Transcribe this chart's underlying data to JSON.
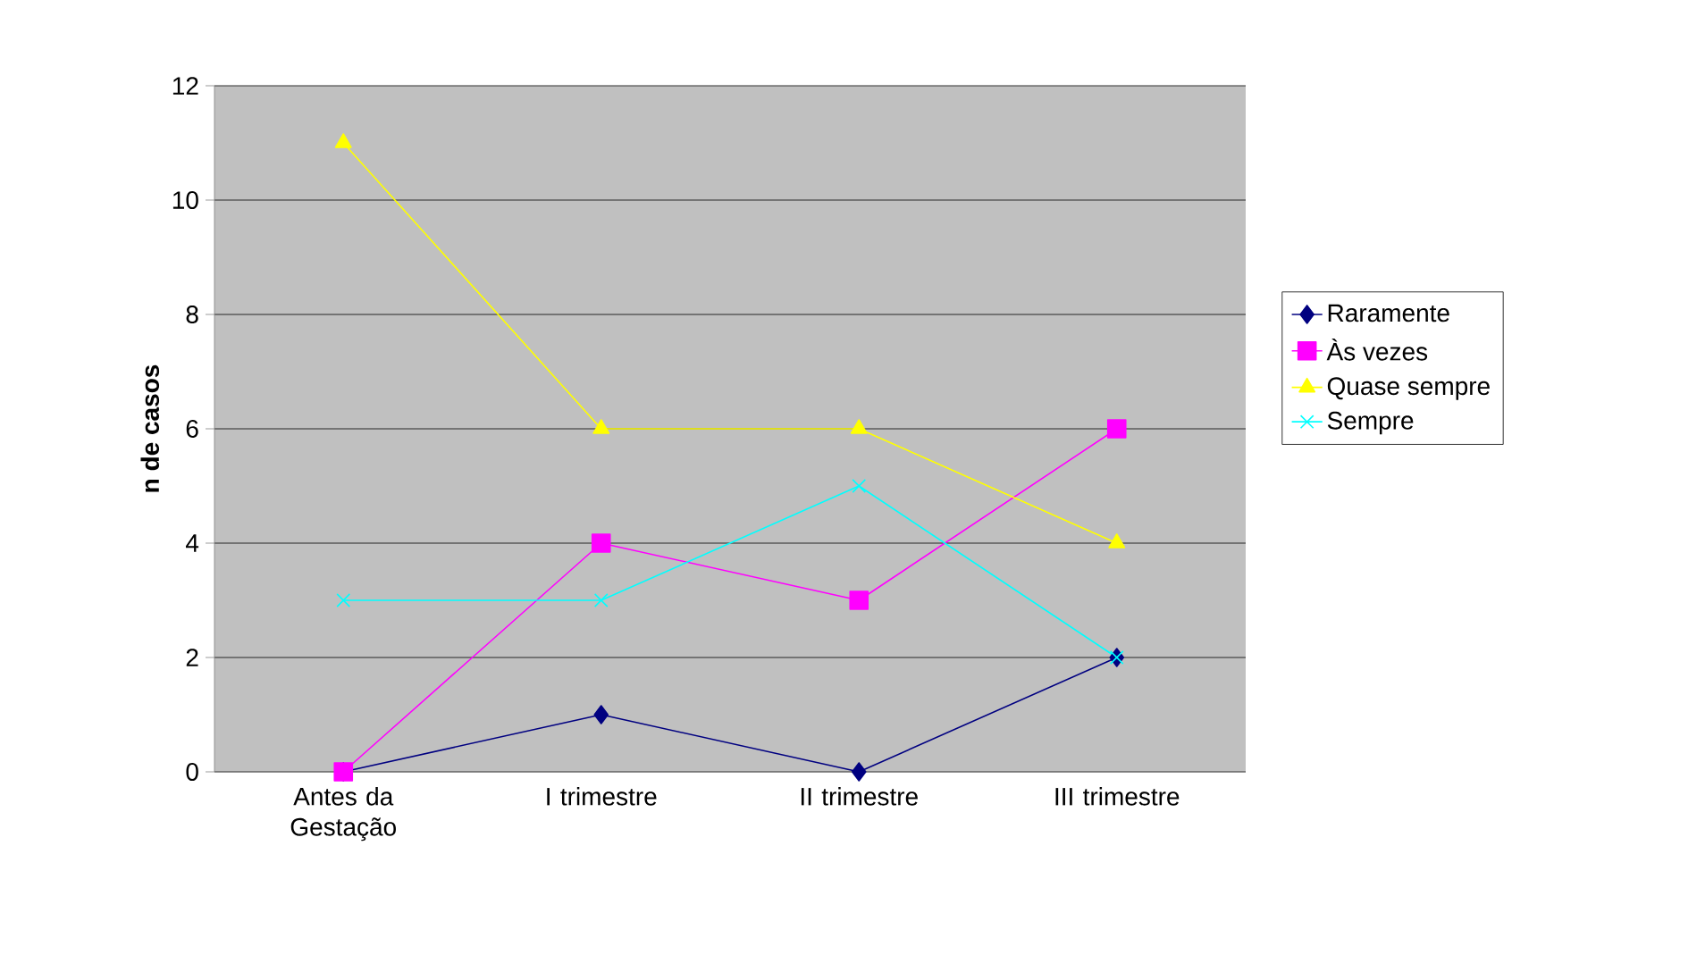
{
  "chart_data": {
    "type": "line",
    "ylabel": "n de casos",
    "categories": [
      "Antes da Gestação",
      "I trimestre",
      "II trimestre",
      "III trimestre"
    ],
    "series": [
      {
        "name": "Raramente",
        "color": "#000080",
        "marker": "diamond",
        "values": [
          0,
          1,
          0,
          2
        ]
      },
      {
        "name": "Às vezes",
        "color": "#ff00ff",
        "marker": "square",
        "values": [
          0,
          4,
          3,
          6
        ]
      },
      {
        "name": "Quase sempre",
        "color": "#ffff00",
        "marker": "triangle",
        "values": [
          11,
          6,
          6,
          4
        ]
      },
      {
        "name": "Sempre",
        "color": "#00ffff",
        "marker": "cross",
        "values": [
          3,
          3,
          5,
          2
        ]
      }
    ],
    "ylim": [
      0,
      12
    ],
    "yticks": [
      0,
      2,
      4,
      6,
      8,
      10,
      12
    ],
    "grid": "y",
    "legend": "right",
    "line_style": "solid"
  }
}
